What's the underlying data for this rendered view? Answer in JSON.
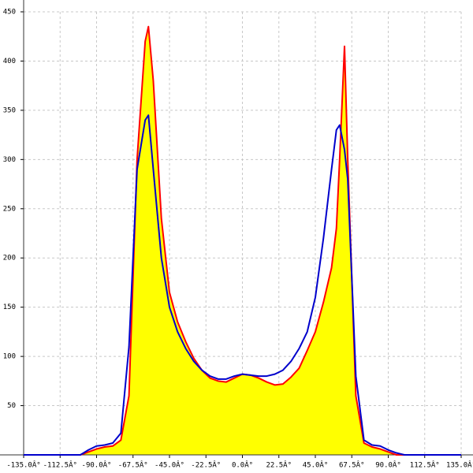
{
  "chart_data": {
    "type": "area-line",
    "x": [
      -135,
      -130,
      -125,
      -120,
      -115,
      -110,
      -105,
      -100,
      -95,
      -90,
      -85,
      -80,
      -75,
      -70,
      -65,
      -60,
      -58,
      -55,
      -50,
      -45,
      -40,
      -35,
      -30,
      -25,
      -20,
      -15,
      -10,
      -5,
      0,
      5,
      10,
      15,
      20,
      25,
      30,
      35,
      40,
      45,
      50,
      55,
      58,
      60,
      63,
      65,
      70,
      75,
      80,
      85,
      90,
      95,
      100,
      105,
      110,
      115,
      120,
      125,
      130,
      135
    ],
    "series": [
      {
        "color": "#ff0000",
        "fill": "#ffff00",
        "values": [
          0,
          0,
          0,
          0,
          0,
          0,
          0,
          0,
          3,
          6,
          8,
          9,
          15,
          60,
          300,
          420,
          435,
          380,
          240,
          165,
          135,
          115,
          98,
          86,
          78,
          75,
          74,
          78,
          82,
          81,
          78,
          74,
          71,
          72,
          79,
          88,
          106,
          125,
          155,
          190,
          230,
          300,
          415,
          300,
          60,
          12,
          8,
          6,
          3,
          0,
          0,
          0,
          0,
          0,
          0,
          0,
          0,
          0
        ]
      },
      {
        "color": "#0000cc",
        "values": [
          0,
          0,
          0,
          0,
          0,
          0,
          0,
          0,
          5,
          9,
          10,
          12,
          22,
          110,
          290,
          340,
          345,
          290,
          200,
          150,
          125,
          108,
          95,
          86,
          80,
          77,
          77,
          80,
          82,
          81,
          80,
          80,
          82,
          86,
          95,
          108,
          125,
          160,
          220,
          290,
          330,
          335,
          310,
          280,
          80,
          15,
          10,
          9,
          5,
          2,
          0,
          0,
          0,
          0,
          0,
          0,
          0,
          0
        ]
      }
    ],
    "xlim": [
      -135,
      135
    ],
    "ylim": [
      0,
      450
    ],
    "xticks": [
      {
        "value": -135,
        "label": "-135.0Â°"
      },
      {
        "value": -112.5,
        "label": "-112.5Â°"
      },
      {
        "value": -90,
        "label": "-90.0Â°"
      },
      {
        "value": -67.5,
        "label": "-67.5Â°"
      },
      {
        "value": -45,
        "label": "-45.0Â°"
      },
      {
        "value": -22.5,
        "label": "-22.5Â°"
      },
      {
        "value": 0,
        "label": "0.0Â°"
      },
      {
        "value": 22.5,
        "label": "22.5Â°"
      },
      {
        "value": 45,
        "label": "45.0Â°"
      },
      {
        "value": 67.5,
        "label": "67.5Â°"
      },
      {
        "value": 90,
        "label": "90.0Â°"
      },
      {
        "value": 112.5,
        "label": "112.5Â°"
      },
      {
        "value": 135,
        "label": "135.0Â°"
      }
    ],
    "yticks": [
      50,
      100,
      150,
      200,
      250,
      300,
      350,
      400,
      450
    ],
    "grid": true
  }
}
